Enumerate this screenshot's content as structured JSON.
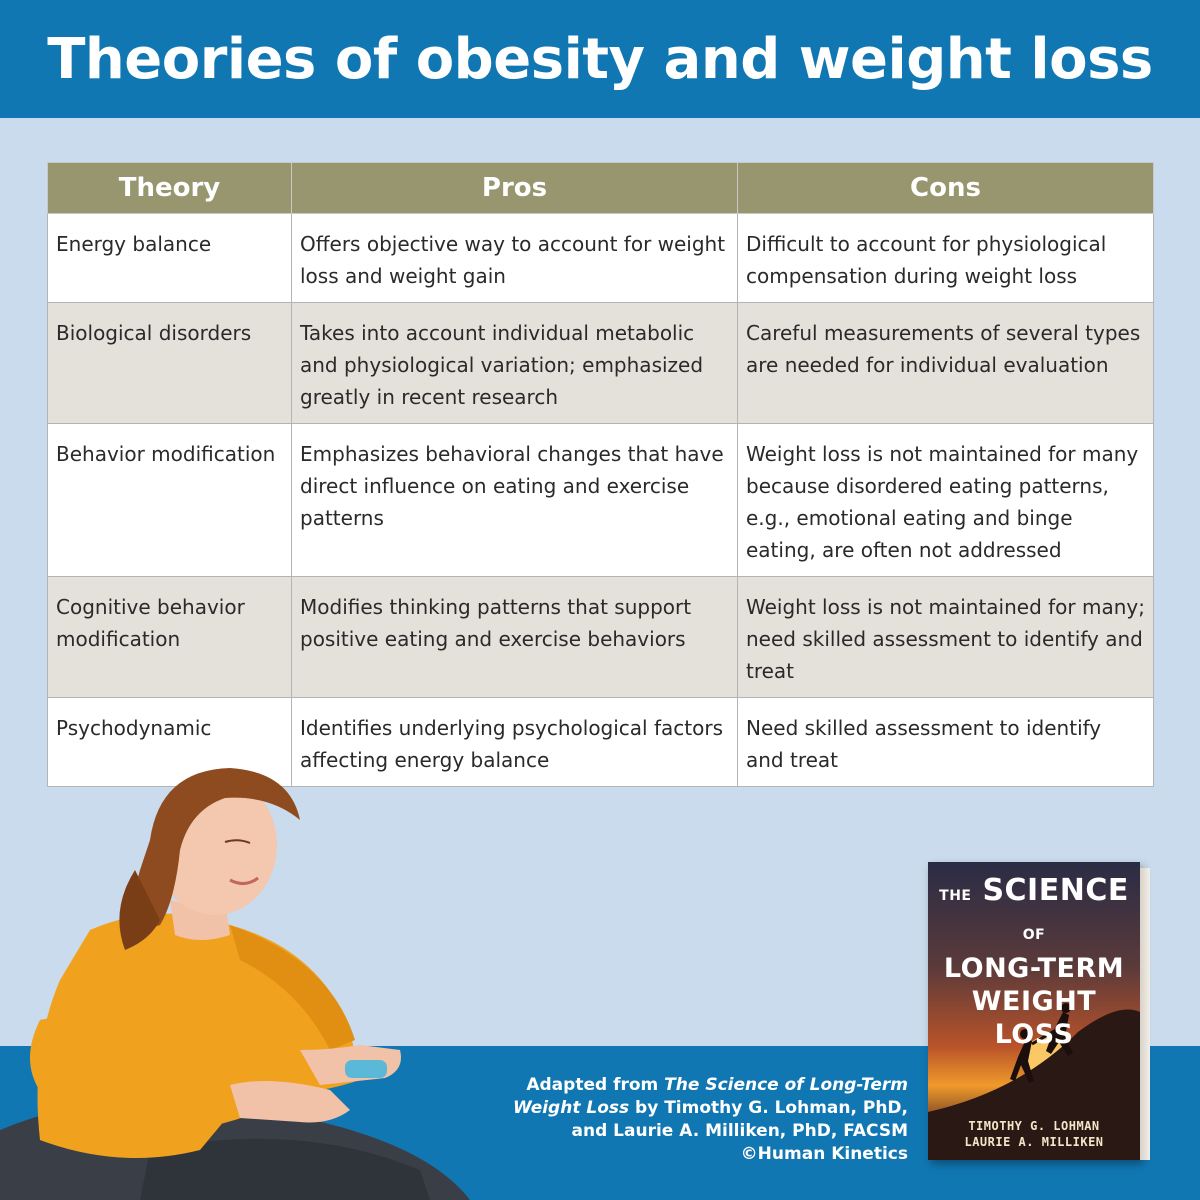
{
  "header": {
    "title": "Theories of obesity and weight loss"
  },
  "table": {
    "columns": [
      "Theory",
      "Pros",
      "Cons"
    ],
    "rows": [
      {
        "theory": "Energy balance",
        "pros": "Offers objective way to account for weight loss and weight gain",
        "cons": "Difficult to account for physiological compensation during weight loss"
      },
      {
        "theory": "Biological disorders",
        "pros": "Takes into account individual metabolic and physiological variation; emphasized greatly in recent research",
        "cons": "Careful measurements of several types are needed for individual evaluation"
      },
      {
        "theory": "Behavior modification",
        "pros": "Emphasizes behavioral changes that have direct influence on eating and exercise patterns",
        "cons": "Weight loss is not maintained for many because disordered eating patterns, e.g., emotional eating and binge eating, are often not addressed"
      },
      {
        "theory": "Cognitive behavior modification",
        "pros": "Modifies thinking patterns that support positive eating and exercise behaviors",
        "cons": "Weight loss is not maintained for many; need skilled assessment to identify and treat"
      },
      {
        "theory": "Psychodynamic",
        "pros": "Identifies underlying psychological factors affecting energy balance",
        "cons": "Need skilled assessment to identify and treat"
      }
    ]
  },
  "credit": {
    "prefix": "Adapted from ",
    "book_title": "The Science of Long-Term Weight Loss",
    "authors": " by Timothy G. Lohman, PhD, and Laurie A. Milliken, PhD, FACSM",
    "copyright": "©Human Kinetics"
  },
  "book": {
    "title_the": "THE",
    "title_science": "SCIENCE",
    "title_of": "OF",
    "title_line2": "LONG-TERM",
    "title_line3": "WEIGHT LOSS",
    "author1": "TIMOTHY G. LOHMAN",
    "author2": "LAURIE A. MILLIKEN"
  },
  "colors": {
    "header_blue": "#1177b3",
    "background": "#c9dbec",
    "table_header": "#97966f",
    "row_alt": "#e3e1d9"
  }
}
